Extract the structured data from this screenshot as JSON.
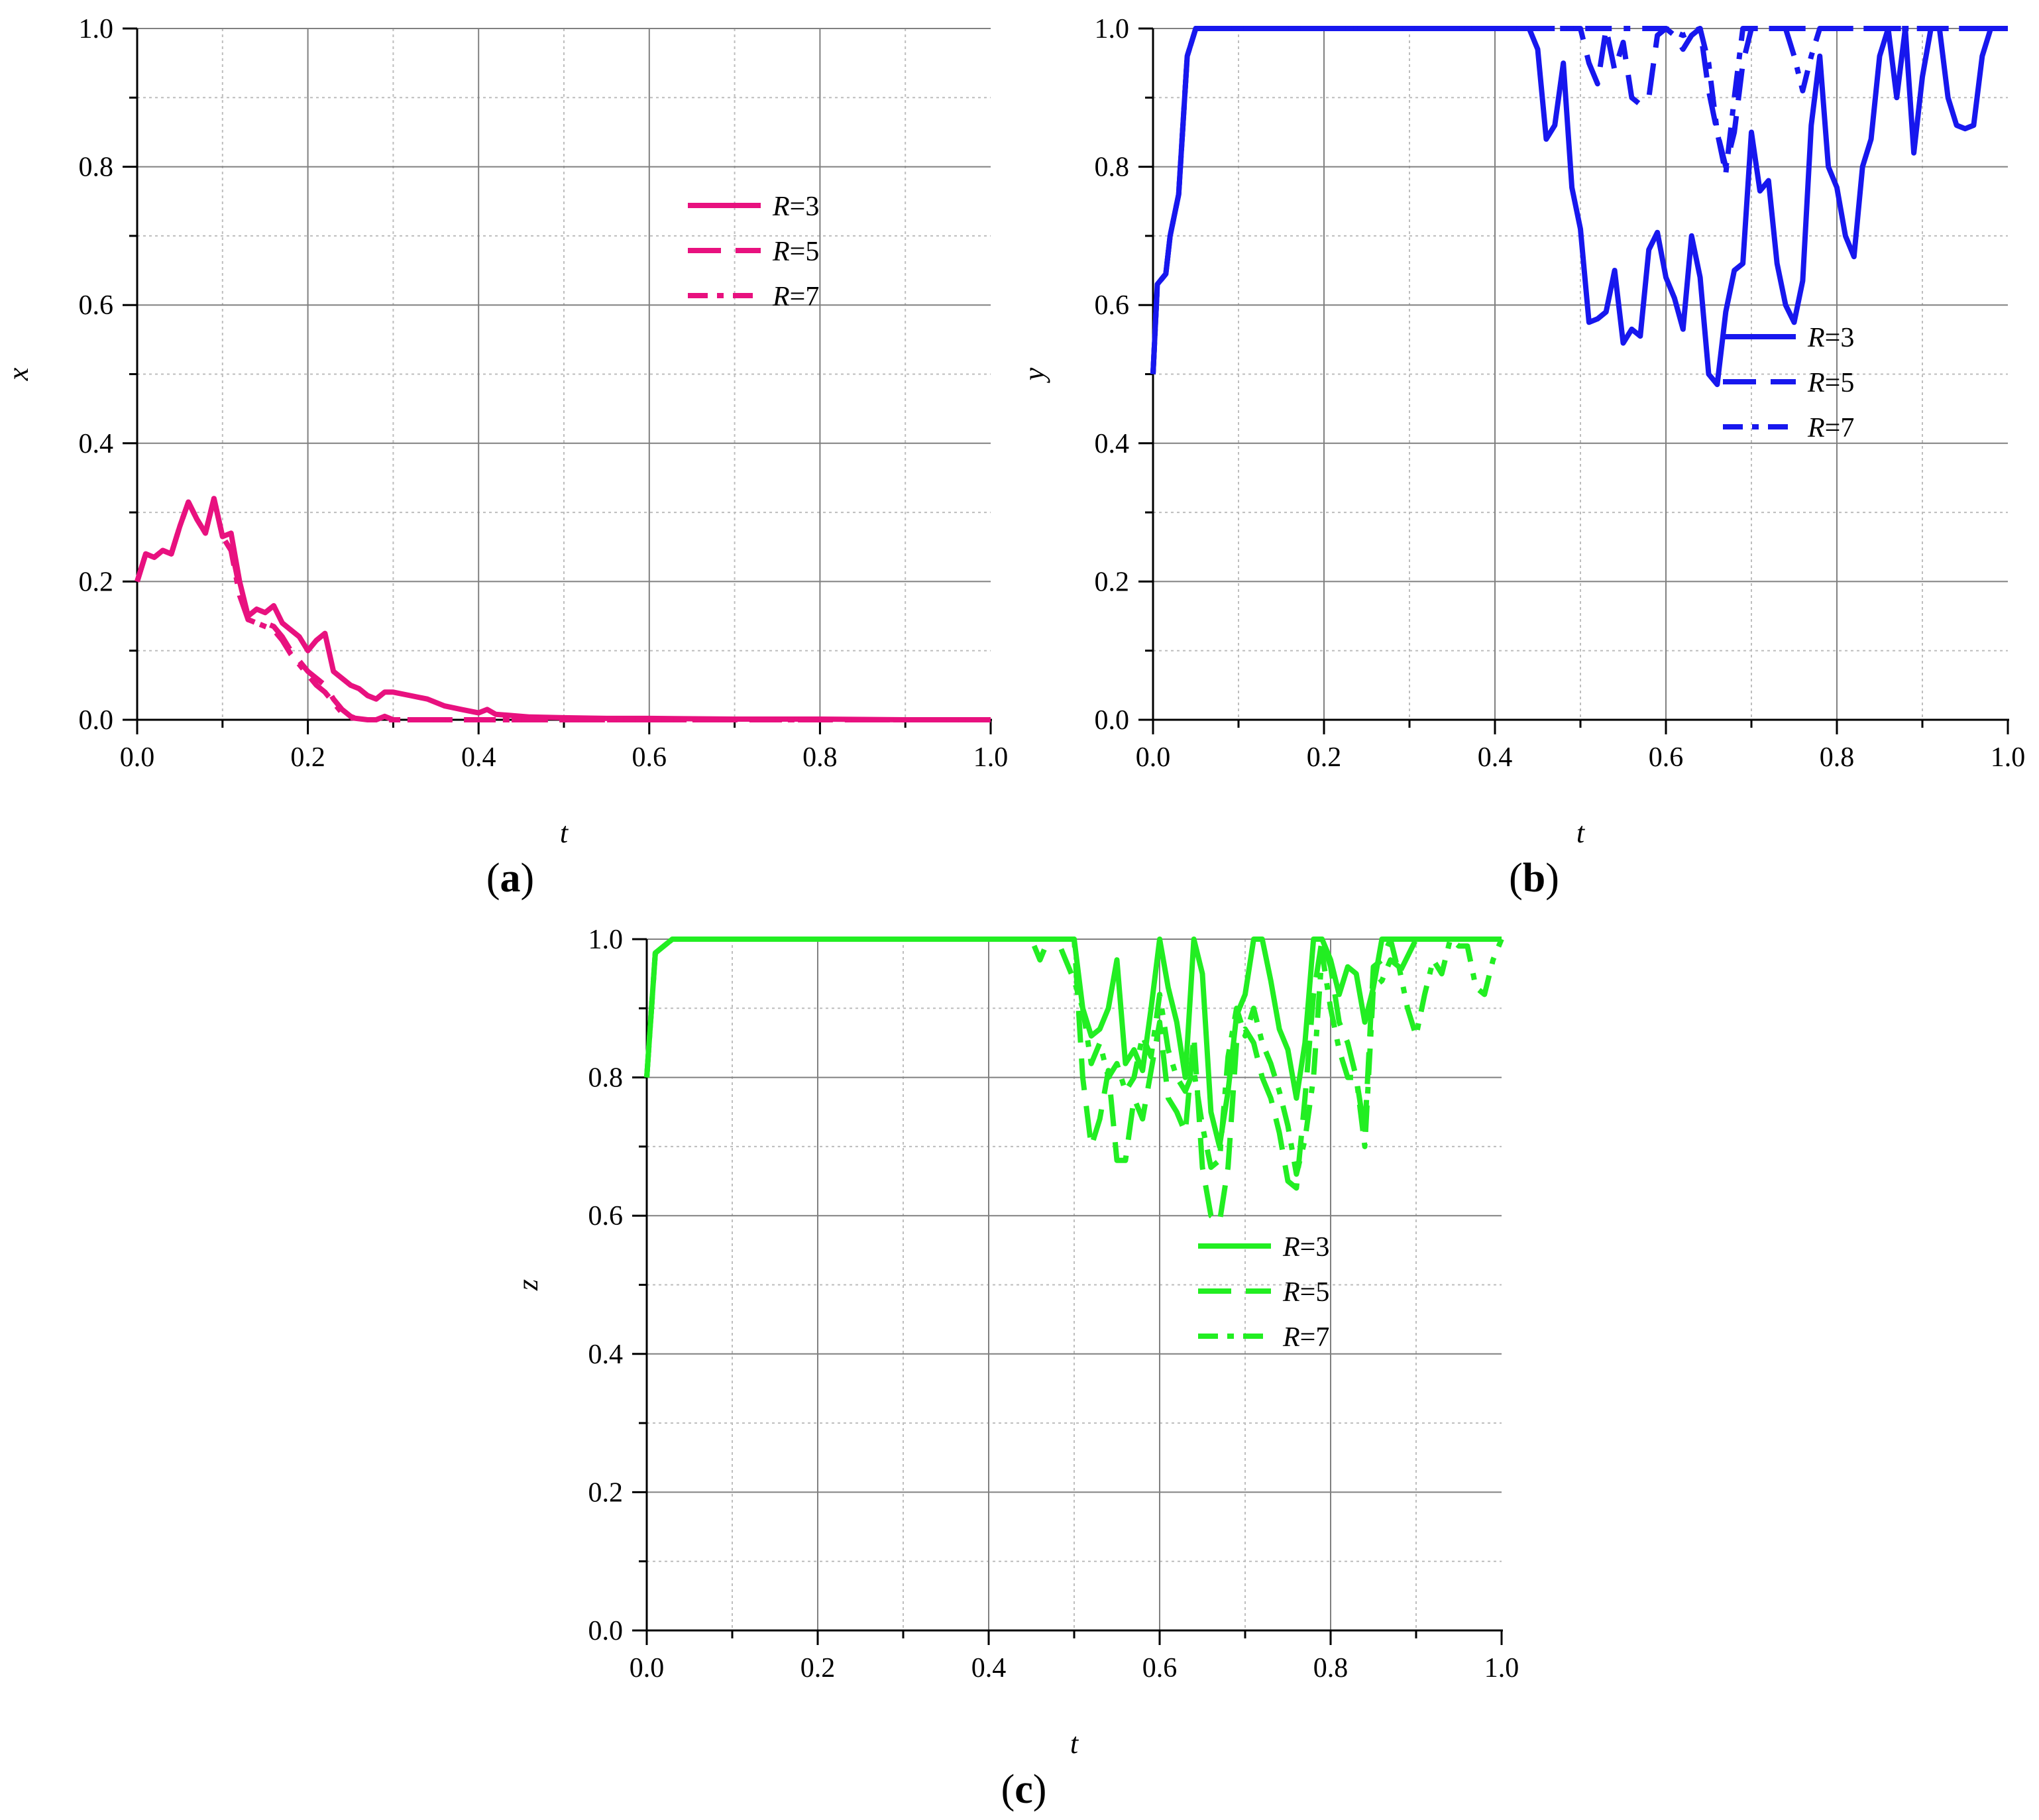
{
  "chart_data": [
    {
      "type": "line",
      "panel_label": "a",
      "xlabel": "t",
      "ylabel": "x",
      "xlim": [
        0,
        1
      ],
      "ylim": [
        0,
        1
      ],
      "x_ticks": [
        "0.0",
        "0.2",
        "0.4",
        "0.6",
        "0.8",
        "1.0"
      ],
      "y_ticks": [
        "0.0",
        "0.2",
        "0.4",
        "0.6",
        "0.8",
        "1.0"
      ],
      "grid": true,
      "legend_position": "right",
      "color": "#e8117f",
      "series": [
        {
          "name": "R=3",
          "style": "solid",
          "x": [
            0.0,
            0.01,
            0.02,
            0.03,
            0.04,
            0.05,
            0.06,
            0.07,
            0.08,
            0.09,
            0.1,
            0.11,
            0.12,
            0.13,
            0.14,
            0.15,
            0.16,
            0.17,
            0.18,
            0.19,
            0.2,
            0.21,
            0.22,
            0.23,
            0.24,
            0.25,
            0.26,
            0.27,
            0.28,
            0.29,
            0.3,
            0.32,
            0.34,
            0.36,
            0.38,
            0.4,
            0.41,
            0.42,
            0.44,
            0.46,
            0.5,
            0.55,
            0.6,
            0.7,
            0.8,
            0.9,
            1.0
          ],
          "y": [
            0.2,
            0.24,
            0.235,
            0.245,
            0.24,
            0.28,
            0.315,
            0.29,
            0.27,
            0.32,
            0.265,
            0.27,
            0.2,
            0.15,
            0.16,
            0.155,
            0.165,
            0.14,
            0.13,
            0.12,
            0.1,
            0.115,
            0.125,
            0.07,
            0.06,
            0.05,
            0.045,
            0.035,
            0.03,
            0.04,
            0.04,
            0.035,
            0.03,
            0.02,
            0.015,
            0.01,
            0.015,
            0.008,
            0.006,
            0.004,
            0.003,
            0.002,
            0.002,
            0.001,
            0.001,
            0.0,
            0.0
          ]
        },
        {
          "name": "R=5",
          "style": "dashed",
          "x": [
            0.0,
            0.01,
            0.02,
            0.03,
            0.04,
            0.05,
            0.06,
            0.07,
            0.08,
            0.09,
            0.1,
            0.11,
            0.12,
            0.13,
            0.14,
            0.15,
            0.16,
            0.17,
            0.18,
            0.19,
            0.2,
            0.21,
            0.22,
            0.23,
            0.24,
            0.25,
            0.26,
            0.27,
            0.28,
            0.29,
            0.3,
            0.32,
            0.35,
            0.4,
            0.5,
            0.6,
            0.8,
            1.0
          ],
          "y": [
            0.2,
            0.24,
            0.235,
            0.245,
            0.24,
            0.28,
            0.315,
            0.29,
            0.27,
            0.32,
            0.265,
            0.25,
            0.19,
            0.145,
            0.14,
            0.14,
            0.135,
            0.12,
            0.1,
            0.085,
            0.07,
            0.06,
            0.05,
            0.03,
            0.015,
            0.005,
            0.0,
            0.0,
            0.0,
            0.005,
            0.0,
            0.0,
            0.0,
            0.0,
            0.0,
            0.0,
            0.0,
            0.0
          ]
        },
        {
          "name": "R=7",
          "style": "dashdot",
          "x": [
            0.0,
            0.01,
            0.02,
            0.03,
            0.04,
            0.05,
            0.06,
            0.07,
            0.08,
            0.09,
            0.1,
            0.11,
            0.12,
            0.13,
            0.14,
            0.15,
            0.16,
            0.17,
            0.18,
            0.19,
            0.2,
            0.21,
            0.22,
            0.23,
            0.24,
            0.25,
            0.27,
            0.3,
            0.35,
            0.4,
            0.5,
            0.6,
            0.8,
            1.0
          ],
          "y": [
            0.2,
            0.24,
            0.235,
            0.245,
            0.24,
            0.28,
            0.315,
            0.29,
            0.27,
            0.32,
            0.265,
            0.245,
            0.18,
            0.145,
            0.14,
            0.135,
            0.13,
            0.115,
            0.095,
            0.08,
            0.065,
            0.05,
            0.04,
            0.025,
            0.01,
            0.003,
            0.0,
            0.0,
            0.0,
            0.0,
            0.0,
            0.0,
            0.0,
            0.0
          ]
        }
      ]
    },
    {
      "type": "line",
      "panel_label": "b",
      "xlabel": "t",
      "ylabel": "y",
      "xlim": [
        0,
        1
      ],
      "ylim": [
        0,
        1
      ],
      "x_ticks": [
        "0.0",
        "0.2",
        "0.4",
        "0.6",
        "0.8",
        "1.0"
      ],
      "y_ticks": [
        "0.0",
        "0.2",
        "0.4",
        "0.6",
        "0.8",
        "1.0"
      ],
      "grid": true,
      "legend_position": "right",
      "color": "#1717ee",
      "series": [
        {
          "name": "R=3",
          "style": "solid",
          "x": [
            0.0,
            0.005,
            0.015,
            0.02,
            0.03,
            0.04,
            0.05,
            0.06,
            0.07,
            0.1,
            0.2,
            0.3,
            0.4,
            0.44,
            0.45,
            0.46,
            0.47,
            0.48,
            0.49,
            0.5,
            0.51,
            0.52,
            0.53,
            0.54,
            0.55,
            0.56,
            0.57,
            0.58,
            0.59,
            0.6,
            0.61,
            0.62,
            0.63,
            0.64,
            0.65,
            0.66,
            0.67,
            0.68,
            0.69,
            0.7,
            0.71,
            0.72,
            0.73,
            0.74,
            0.75,
            0.76,
            0.77,
            0.78,
            0.79,
            0.8,
            0.81,
            0.82,
            0.83,
            0.84,
            0.85,
            0.86,
            0.87,
            0.88,
            0.89,
            0.9,
            0.91,
            0.92,
            0.93,
            0.94,
            0.95,
            0.96,
            0.97,
            0.98,
            0.99,
            1.0
          ],
          "y": [
            0.5,
            0.63,
            0.645,
            0.7,
            0.76,
            0.96,
            1.0,
            1.0,
            1.0,
            1.0,
            1.0,
            1.0,
            1.0,
            1.0,
            0.97,
            0.84,
            0.86,
            0.95,
            0.77,
            0.71,
            0.575,
            0.58,
            0.59,
            0.65,
            0.545,
            0.565,
            0.555,
            0.68,
            0.705,
            0.64,
            0.61,
            0.565,
            0.7,
            0.64,
            0.5,
            0.485,
            0.59,
            0.65,
            0.66,
            0.85,
            0.765,
            0.78,
            0.66,
            0.6,
            0.575,
            0.635,
            0.86,
            0.96,
            0.8,
            0.77,
            0.7,
            0.67,
            0.8,
            0.84,
            0.96,
            1.0,
            0.9,
            1.0,
            0.82,
            0.93,
            1.0,
            1.0,
            0.9,
            0.86,
            0.855,
            0.86,
            0.96,
            1.0,
            1.0,
            1.0
          ]
        },
        {
          "name": "R=5",
          "style": "dashed",
          "x": [
            0.0,
            0.005,
            0.015,
            0.02,
            0.03,
            0.04,
            0.05,
            0.06,
            0.1,
            0.3,
            0.5,
            0.51,
            0.52,
            0.53,
            0.54,
            0.55,
            0.56,
            0.57,
            0.58,
            0.59,
            0.6,
            0.61,
            0.62,
            0.63,
            0.64,
            0.65,
            0.66,
            0.67,
            0.68,
            0.69,
            0.7,
            0.75,
            0.8,
            0.9,
            1.0
          ],
          "y": [
            0.5,
            0.63,
            0.645,
            0.7,
            0.76,
            0.96,
            1.0,
            1.0,
            1.0,
            1.0,
            1.0,
            0.95,
            0.92,
            1.0,
            0.94,
            0.98,
            0.9,
            0.89,
            0.9,
            0.99,
            1.0,
            0.99,
            0.97,
            0.99,
            1.0,
            0.91,
            0.85,
            0.8,
            0.85,
            0.95,
            1.0,
            1.0,
            1.0,
            1.0,
            1.0
          ]
        },
        {
          "name": "R=7",
          "style": "dashdot",
          "x": [
            0.0,
            0.005,
            0.015,
            0.02,
            0.03,
            0.04,
            0.05,
            0.06,
            0.1,
            0.3,
            0.5,
            0.55,
            0.6,
            0.62,
            0.64,
            0.65,
            0.66,
            0.67,
            0.68,
            0.69,
            0.7,
            0.72,
            0.74,
            0.75,
            0.76,
            0.77,
            0.78,
            0.8,
            0.9,
            1.0
          ],
          "y": [
            0.5,
            0.63,
            0.645,
            0.7,
            0.76,
            0.96,
            1.0,
            1.0,
            1.0,
            1.0,
            1.0,
            1.0,
            1.0,
            0.99,
            1.0,
            0.95,
            0.85,
            0.79,
            0.9,
            1.0,
            1.0,
            1.0,
            1.0,
            0.96,
            0.91,
            0.96,
            1.0,
            1.0,
            1.0,
            1.0
          ]
        }
      ]
    },
    {
      "type": "line",
      "panel_label": "c",
      "xlabel": "t",
      "ylabel": "z",
      "xlim": [
        0,
        1
      ],
      "ylim": [
        0,
        1
      ],
      "x_ticks": [
        "0.0",
        "0.2",
        "0.4",
        "0.6",
        "0.8",
        "1.0"
      ],
      "y_ticks": [
        "0.0",
        "0.2",
        "0.4",
        "0.6",
        "0.8",
        "1.0"
      ],
      "grid": true,
      "legend_position": "right",
      "color": "#22ee22",
      "series": [
        {
          "name": "R=3",
          "style": "solid",
          "x": [
            0.0,
            0.01,
            0.02,
            0.03,
            0.04,
            0.1,
            0.3,
            0.5,
            0.51,
            0.52,
            0.53,
            0.54,
            0.55,
            0.56,
            0.57,
            0.58,
            0.59,
            0.6,
            0.61,
            0.62,
            0.63,
            0.64,
            0.65,
            0.66,
            0.67,
            0.68,
            0.69,
            0.7,
            0.71,
            0.72,
            0.73,
            0.74,
            0.75,
            0.76,
            0.77,
            0.78,
            0.79,
            0.8,
            0.81,
            0.82,
            0.83,
            0.84,
            0.85,
            0.86,
            0.9,
            1.0
          ],
          "y": [
            0.8,
            0.98,
            0.99,
            1.0,
            1.0,
            1.0,
            1.0,
            1.0,
            0.9,
            0.86,
            0.87,
            0.9,
            0.97,
            0.82,
            0.84,
            0.81,
            0.9,
            1.0,
            0.93,
            0.88,
            0.8,
            1.0,
            0.95,
            0.75,
            0.7,
            0.78,
            0.89,
            0.92,
            1.0,
            1.0,
            0.94,
            0.87,
            0.84,
            0.77,
            0.85,
            1.0,
            1.0,
            0.97,
            0.92,
            0.96,
            0.95,
            0.88,
            0.93,
            1.0,
            1.0,
            1.0
          ]
        },
        {
          "name": "R=5",
          "style": "dashed",
          "x": [
            0.0,
            0.01,
            0.02,
            0.03,
            0.04,
            0.1,
            0.3,
            0.45,
            0.5,
            0.51,
            0.52,
            0.53,
            0.54,
            0.55,
            0.56,
            0.57,
            0.58,
            0.59,
            0.6,
            0.61,
            0.62,
            0.63,
            0.64,
            0.65,
            0.66,
            0.67,
            0.68,
            0.69,
            0.7,
            0.71,
            0.72,
            0.73,
            0.74,
            0.75,
            0.76,
            0.77,
            0.78,
            0.79,
            0.8,
            0.81,
            0.82,
            0.83,
            0.84,
            0.85,
            0.86,
            0.87,
            0.88,
            0.9,
            0.95,
            1.0
          ],
          "y": [
            0.8,
            0.98,
            0.99,
            1.0,
            1.0,
            1.0,
            1.0,
            1.0,
            1.0,
            0.8,
            0.7,
            0.74,
            0.81,
            0.68,
            0.68,
            0.77,
            0.74,
            0.81,
            0.88,
            0.77,
            0.75,
            0.72,
            0.86,
            0.67,
            0.6,
            0.59,
            0.67,
            0.85,
            0.87,
            0.85,
            0.8,
            0.77,
            0.72,
            0.65,
            0.64,
            0.77,
            0.92,
            1.0,
            0.96,
            0.88,
            0.85,
            0.8,
            0.72,
            0.96,
            0.97,
            1.0,
            0.95,
            1.0,
            1.0,
            1.0
          ]
        },
        {
          "name": "R=7",
          "style": "dashdot",
          "x": [
            0.0,
            0.01,
            0.02,
            0.03,
            0.04,
            0.1,
            0.3,
            0.45,
            0.46,
            0.47,
            0.48,
            0.49,
            0.5,
            0.51,
            0.52,
            0.53,
            0.54,
            0.55,
            0.56,
            0.57,
            0.58,
            0.59,
            0.6,
            0.61,
            0.62,
            0.63,
            0.64,
            0.65,
            0.66,
            0.67,
            0.68,
            0.69,
            0.7,
            0.71,
            0.72,
            0.73,
            0.74,
            0.75,
            0.76,
            0.77,
            0.78,
            0.79,
            0.8,
            0.81,
            0.82,
            0.83,
            0.84,
            0.85,
            0.86,
            0.87,
            0.88,
            0.89,
            0.9,
            0.91,
            0.92,
            0.93,
            0.94,
            0.95,
            0.96,
            0.97,
            0.98,
            0.99,
            1.0
          ],
          "y": [
            0.8,
            0.98,
            0.99,
            1.0,
            1.0,
            1.0,
            1.0,
            1.0,
            0.97,
            1.0,
            1.0,
            0.97,
            0.94,
            0.9,
            0.82,
            0.85,
            0.8,
            0.82,
            0.78,
            0.8,
            0.86,
            0.83,
            0.92,
            0.84,
            0.8,
            0.78,
            0.81,
            0.73,
            0.67,
            0.68,
            0.83,
            0.9,
            0.86,
            0.9,
            0.85,
            0.82,
            0.78,
            0.73,
            0.66,
            0.71,
            0.8,
            0.98,
            0.9,
            0.84,
            0.8,
            0.8,
            0.7,
            0.93,
            0.94,
            0.97,
            0.96,
            0.9,
            0.86,
            0.92,
            0.97,
            0.95,
            1.0,
            0.99,
            0.99,
            0.93,
            0.92,
            0.97,
            1.0
          ]
        }
      ]
    }
  ]
}
